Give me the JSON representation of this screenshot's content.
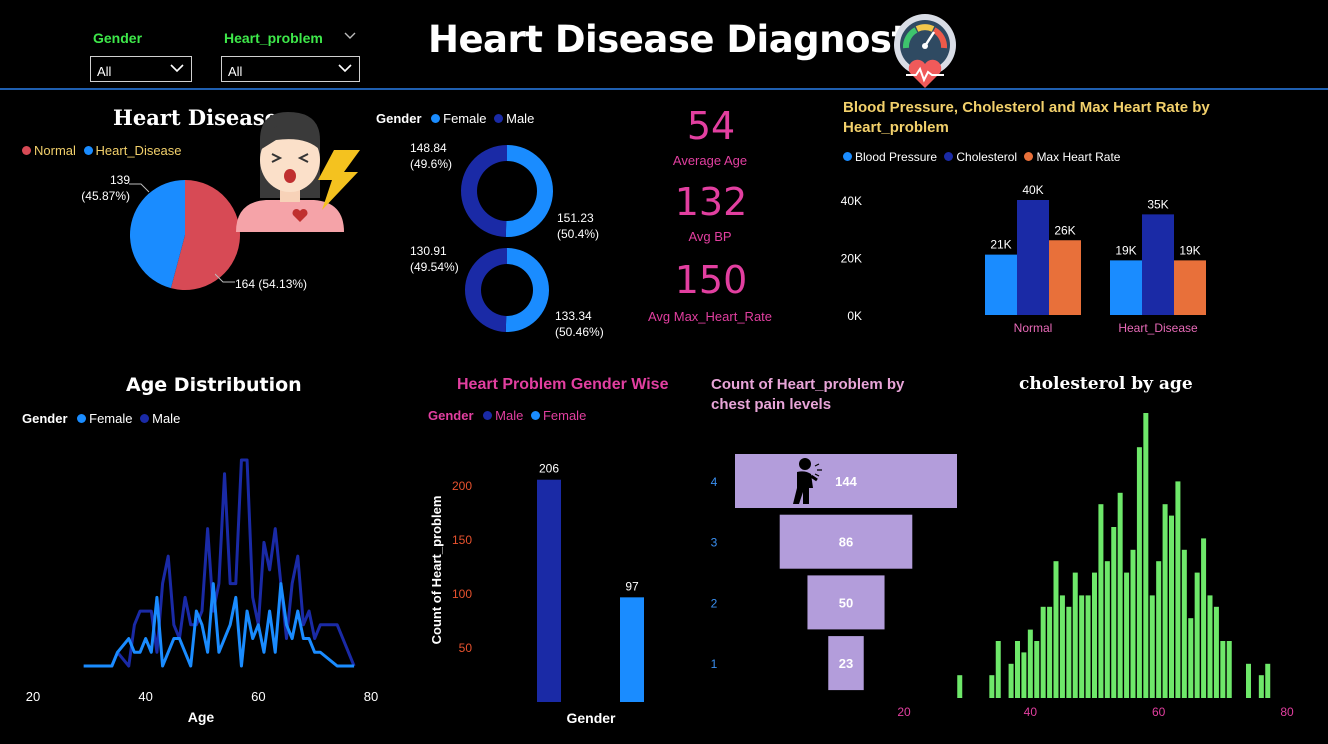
{
  "filters": {
    "gender": {
      "label": "Gender",
      "value": "All"
    },
    "heart_problem": {
      "label": "Heart_problem",
      "value": "All"
    }
  },
  "header": {
    "title": "Heart Disease Diagnostic"
  },
  "colors": {
    "normal_red": "#d74a55",
    "heart_blue": "#1a8cff",
    "male_navy": "#1a2aa6",
    "orange": "#e8703a",
    "pink": "#e23fa0",
    "green": "#6ee86a",
    "funnel": "#b39ddb",
    "gold": "#f2d06b"
  },
  "icons": [
    "gauge-heart-icon",
    "sick-woman-icon",
    "lightning-icon",
    "chest-pain-person-icon",
    "chevron-down-icon"
  ],
  "kpis": {
    "avg_age": {
      "value": "54",
      "label": "Average Age"
    },
    "avg_bp": {
      "value": "132",
      "label": "Avg BP"
    },
    "avg_hr": {
      "value": "150",
      "label": "Avg Max_Heart_Rate"
    }
  },
  "chart_data": [
    {
      "id": "heart_disease_pie",
      "type": "pie",
      "title": "Heart Disease",
      "legend": [
        "Normal",
        "Heart_Disease"
      ],
      "slices": [
        {
          "name": "Normal",
          "value": 164,
          "label": "164 (54.13%)"
        },
        {
          "name": "Heart_Disease",
          "value": 139,
          "label": "139 (45.87%)"
        }
      ]
    },
    {
      "id": "gender_donuts",
      "type": "pie",
      "legend_title": "Gender",
      "legend": [
        "Female",
        "Male"
      ],
      "donuts": [
        {
          "slices": [
            {
              "name": "Female",
              "value": 151.23,
              "label": "151.23 (50.4%)"
            },
            {
              "name": "Male",
              "value": 148.84,
              "label": "148.84 (49.6%)"
            }
          ]
        },
        {
          "slices": [
            {
              "name": "Female",
              "value": 133.34,
              "label": "133.34 (50.46%)"
            },
            {
              "name": "Male",
              "value": 130.91,
              "label": "130.91 (49.54%)"
            }
          ]
        }
      ]
    },
    {
      "id": "bp_chol_hr",
      "type": "bar",
      "title": "Blood Pressure, Cholesterol and Max Heart Rate by Heart_problem",
      "categories": [
        "Normal",
        "Heart_Disease"
      ],
      "series": [
        {
          "name": "Blood Pressure",
          "values": [
            21000,
            19000
          ],
          "labels": [
            "21K",
            "19K"
          ]
        },
        {
          "name": "Cholesterol",
          "values": [
            40000,
            35000
          ],
          "labels": [
            "40K",
            "35K"
          ]
        },
        {
          "name": "Max Heart Rate",
          "values": [
            26000,
            19000
          ],
          "labels": [
            "26K",
            "19K"
          ]
        }
      ],
      "yticks": [
        "0K",
        "20K",
        "40K"
      ],
      "ylim": [
        0,
        40000
      ]
    },
    {
      "id": "age_distribution",
      "type": "line",
      "title": "Age Distribution",
      "legend_title": "Gender",
      "legend": [
        "Female",
        "Male"
      ],
      "xlabel": "Age",
      "xticks": [
        "20",
        "40",
        "60",
        "80"
      ],
      "xlim": [
        20,
        80
      ],
      "series": [
        {
          "name": "Male",
          "x": [
            29,
            34,
            35,
            37,
            38,
            39,
            40,
            41,
            42,
            43,
            44,
            45,
            46,
            47,
            48,
            49,
            50,
            51,
            52,
            53,
            54,
            55,
            56,
            57,
            58,
            59,
            60,
            61,
            62,
            63,
            64,
            65,
            66,
            67,
            68,
            69,
            70,
            71,
            74,
            77
          ],
          "y": [
            0,
            0,
            1,
            0,
            3,
            4,
            4,
            4,
            1,
            6,
            8,
            3,
            2,
            5,
            3,
            3,
            4,
            10,
            4,
            6,
            14,
            6,
            6,
            15,
            15,
            5,
            3,
            9,
            7,
            10,
            6,
            2,
            6,
            8,
            3,
            4,
            2,
            3,
            3,
            0
          ]
        },
        {
          "name": "Female",
          "x": [
            29,
            34,
            35,
            37,
            38,
            39,
            40,
            41,
            42,
            43,
            44,
            45,
            46,
            47,
            48,
            49,
            50,
            51,
            52,
            53,
            54,
            55,
            56,
            57,
            58,
            59,
            60,
            61,
            62,
            63,
            64,
            65,
            66,
            67,
            68,
            69,
            70,
            71,
            74,
            77
          ],
          "y": [
            0,
            0,
            1,
            2,
            1,
            1,
            2,
            1,
            5,
            0,
            1,
            2,
            2,
            1,
            0,
            4,
            3,
            1,
            6,
            1,
            2,
            3,
            5,
            0,
            4,
            2,
            3,
            1,
            4,
            1,
            6,
            3,
            2,
            4,
            2,
            2,
            1,
            1,
            0,
            0
          ]
        }
      ]
    },
    {
      "id": "heart_problem_gender",
      "type": "bar",
      "title": "Heart Problem Gender Wise",
      "legend_title": "Gender",
      "legend": [
        "Male",
        "Female"
      ],
      "categories": [
        "Male",
        "Female"
      ],
      "values": [
        206,
        97
      ],
      "yticks": [
        "50",
        "100",
        "150",
        "200"
      ],
      "ylim": [
        0,
        215
      ],
      "xlabel": "Gender",
      "ylabel": "Count of Heart_problem"
    },
    {
      "id": "chest_pain_funnel",
      "type": "bar",
      "title": "Count of Heart_problem by chest pain levels",
      "categories": [
        "4",
        "3",
        "2",
        "1"
      ],
      "values": [
        144,
        86,
        50,
        23
      ]
    },
    {
      "id": "cholesterol_by_age",
      "type": "bar",
      "title": "cholesterol by age",
      "xticks": [
        "20",
        "40",
        "60",
        "80"
      ],
      "xlim": [
        20,
        80
      ],
      "x": [
        29,
        34,
        35,
        37,
        38,
        39,
        40,
        41,
        42,
        43,
        44,
        45,
        46,
        47,
        48,
        49,
        50,
        51,
        52,
        53,
        54,
        55,
        56,
        57,
        58,
        59,
        60,
        61,
        62,
        63,
        64,
        65,
        66,
        67,
        68,
        69,
        70,
        71,
        74,
        76,
        77
      ],
      "values": [
        2,
        2,
        5,
        3,
        5,
        4,
        6,
        5,
        8,
        8,
        12,
        9,
        8,
        11,
        9,
        9,
        11,
        17,
        12,
        15,
        18,
        11,
        13,
        22,
        25,
        9,
        12,
        17,
        16,
        19,
        13,
        7,
        11,
        14,
        9,
        8,
        5,
        5,
        3,
        2,
        3
      ]
    }
  ]
}
